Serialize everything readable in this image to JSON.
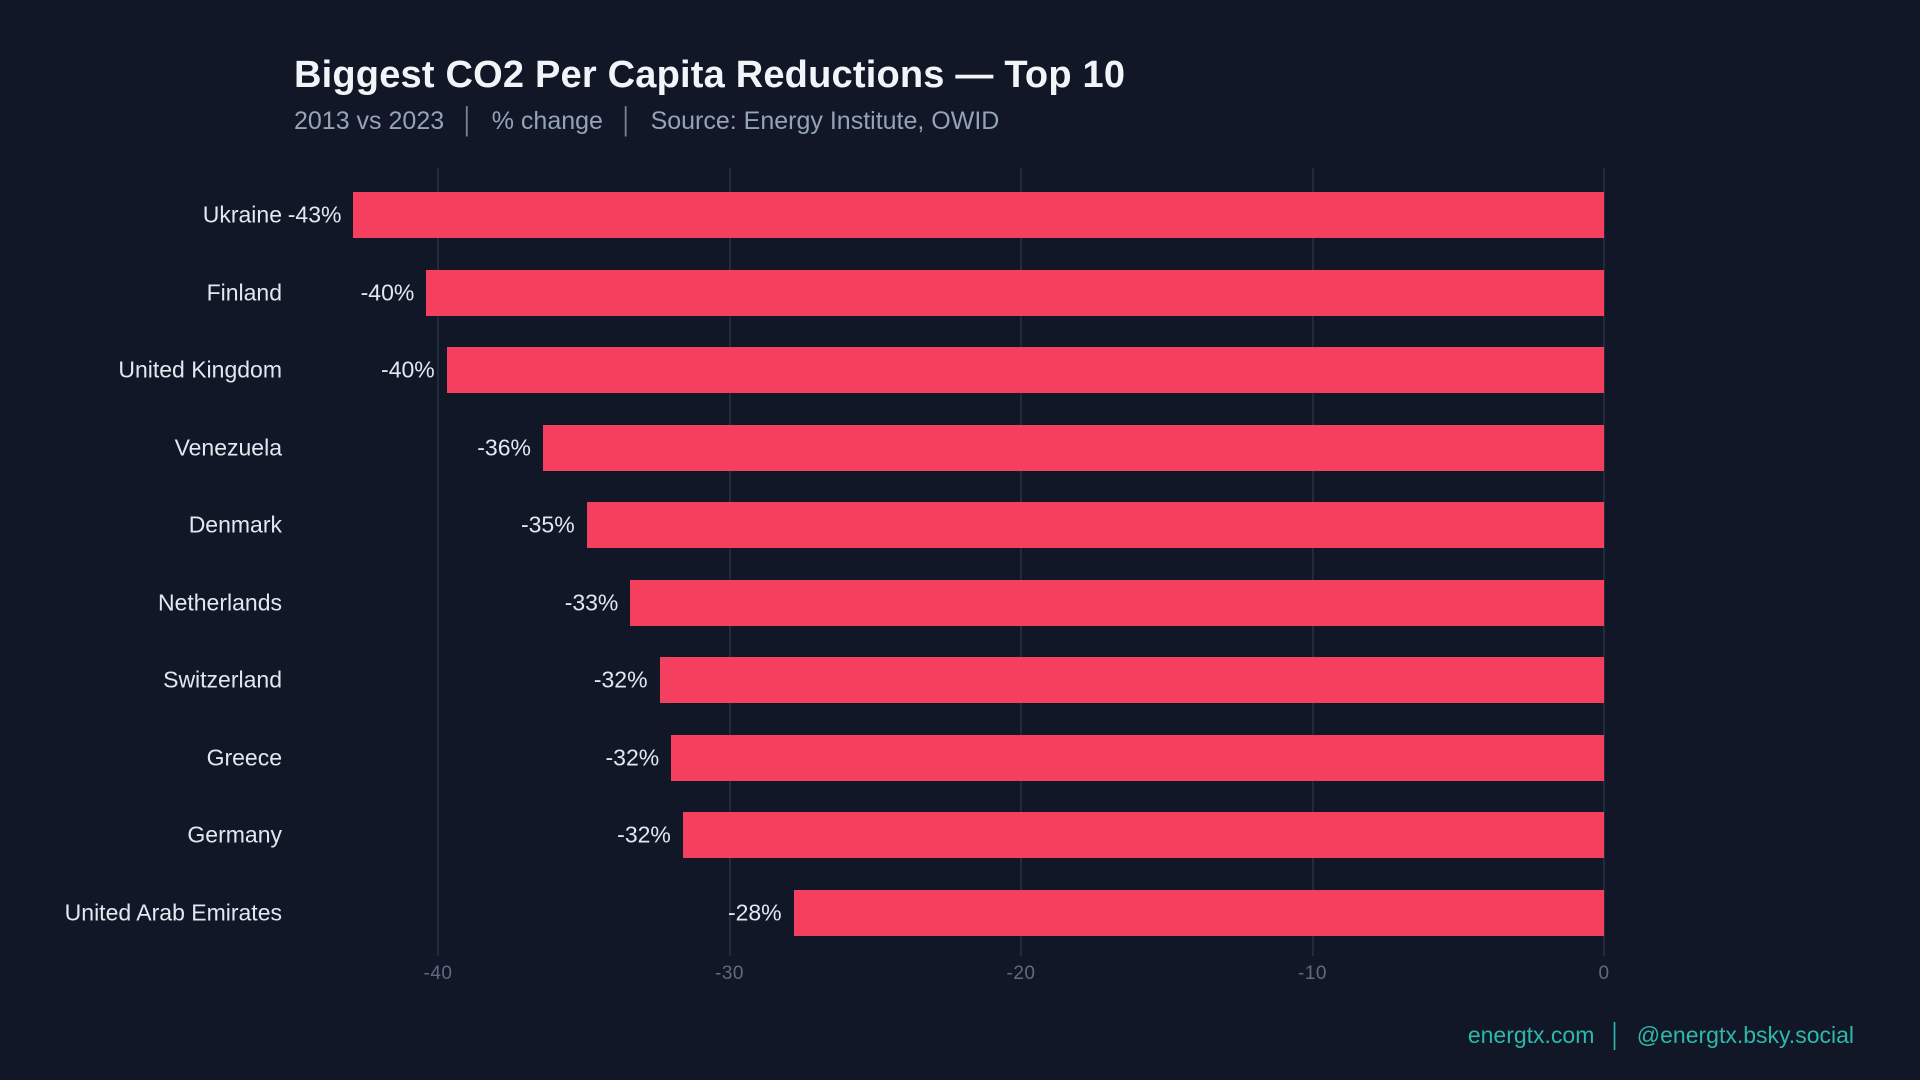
{
  "header": {
    "title": "Biggest CO2 Per Capita Reductions — Top 10",
    "subtitle_period": "2013 vs 2023",
    "subtitle_metric": "% change",
    "subtitle_source": "Source: Energy Institute, OWID",
    "separator": "│"
  },
  "footer": {
    "website": "energtx.com",
    "separator": "│",
    "handle": "@energtx.bsky.social"
  },
  "colors": {
    "background": "#111726",
    "bar": "#f43f5e",
    "title_text": "#f1f5f9",
    "subtitle_text": "#94a3b8",
    "row_label_text": "#e2e8f0",
    "tick_text": "#5f6b80",
    "gridline": "rgba(148,163,184,0.14)",
    "footer_teal": "#2db8ab"
  },
  "chart_data": {
    "type": "bar",
    "orientation": "horizontal",
    "title": "Biggest CO2 Per Capita Reductions — Top 10",
    "subtitle": "2013 vs 2023 │ % change │ Source: Energy Institute, OWID",
    "categories": [
      "Ukraine",
      "Finland",
      "United Kingdom",
      "Venezuela",
      "Denmark",
      "Netherlands",
      "Switzerland",
      "Greece",
      "Germany",
      "United Arab Emirates"
    ],
    "values": [
      -42.9,
      -40.4,
      -39.7,
      -36.4,
      -34.9,
      -33.4,
      -32.4,
      -32.0,
      -31.6,
      -27.8
    ],
    "value_labels": [
      "-43%",
      "-40%",
      "-40%",
      "-36%",
      "-35%",
      "-33%",
      "-32%",
      "-32%",
      "-32%",
      "-28%"
    ],
    "xlabel": "% change",
    "ylabel": "",
    "xlim": [
      -45,
      0
    ],
    "xticks": [
      -40,
      -30,
      -20,
      -10,
      0
    ],
    "xtick_labels": [
      "-40",
      "-30",
      "-20",
      "-10",
      "0"
    ],
    "grid": true,
    "legend": false
  }
}
